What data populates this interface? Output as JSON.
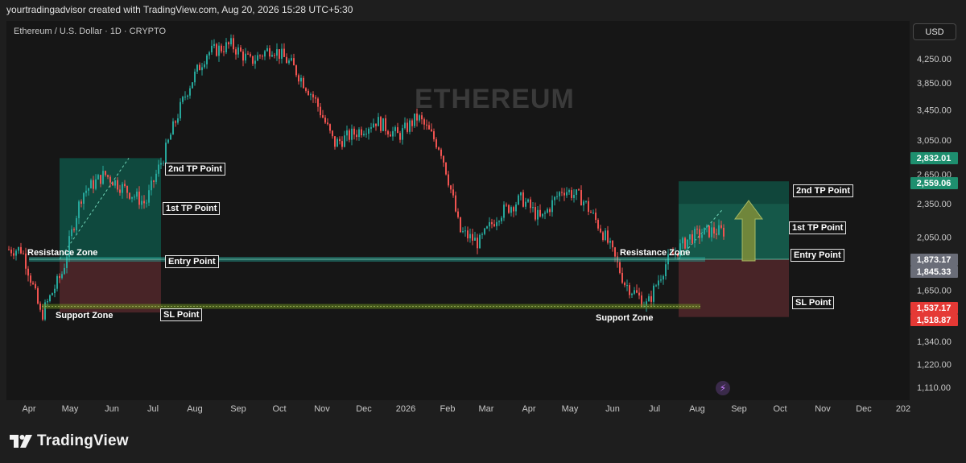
{
  "header": {
    "text": "yourtradingadvisor created with TradingView.com, Aug 20, 2026 15:28 UTC+5:30"
  },
  "symbol": {
    "title": "Ethereum / U.S. Dollar · 1D · CRYPTO"
  },
  "currency": {
    "label": "USD"
  },
  "watermark": {
    "text": "ETHEREUM"
  },
  "brand": {
    "name": "TradingView"
  },
  "colors": {
    "up": "#26a69a",
    "down": "#ef5350",
    "profit_zone": "#0e5b4c",
    "profit_zone_light": "#16755f",
    "loss_zone": "#5a2a2e",
    "entry_line": "#26a69a",
    "sl_line": "#6b8e23",
    "arrow": "#7a8b3a",
    "label_green": "#1e8f6f",
    "label_red": "#e53935",
    "label_gray": "#6a6d78"
  },
  "chart_data": {
    "type": "candlestick",
    "title": "Ethereum / U.S. Dollar · 1D · CRYPTO",
    "price_axis": {
      "ticks": [
        "4,250.00",
        "3,850.00",
        "3,450.00",
        "3,050.00",
        "2,650.00",
        "2,350.00",
        "2,050.00",
        "1,650.00",
        "1,340.00",
        "1,220.00",
        "1,110.00"
      ]
    },
    "time_axis": {
      "ticks": [
        "Apr",
        "May",
        "Jun",
        "Jul",
        "Aug",
        "Sep",
        "Oct",
        "Nov",
        "Dec",
        "2026",
        "Feb",
        "Mar",
        "Apr",
        "May",
        "Jun",
        "Jul",
        "Aug",
        "Sep",
        "Oct",
        "Nov",
        "Dec",
        "202"
      ]
    },
    "price_path": [
      [
        "Apr",
        1950
      ],
      [
        "Apr",
        1480
      ],
      [
        "May",
        1780
      ],
      [
        "May",
        2450
      ],
      [
        "Jun",
        2650
      ],
      [
        "Jun",
        2500
      ],
      [
        "Jul",
        2350
      ],
      [
        "Jul",
        2900
      ],
      [
        "Aug",
        3750
      ],
      [
        "Aug",
        4350
      ],
      [
        "Sep",
        4500
      ],
      [
        "Sep",
        4200
      ],
      [
        "Oct",
        4450
      ],
      [
        "Oct",
        4150
      ],
      [
        "Nov",
        3600
      ],
      [
        "Nov",
        3000
      ],
      [
        "Dec",
        3150
      ],
      [
        "Dec",
        3300
      ],
      [
        "2026",
        3100
      ],
      [
        "2026",
        3350
      ],
      [
        "Feb",
        2950
      ],
      [
        "Feb",
        2100
      ],
      [
        "Mar",
        2000
      ],
      [
        "Mar",
        2250
      ],
      [
        "Apr",
        2400
      ],
      [
        "Apr",
        2200
      ],
      [
        "May",
        2500
      ],
      [
        "May",
        2400
      ],
      [
        "Jun",
        2050
      ],
      [
        "Jun",
        1700
      ],
      [
        "Jul",
        1550
      ],
      [
        "Jul",
        1850
      ],
      [
        "Aug",
        2050
      ],
      [
        "Aug",
        2100
      ]
    ],
    "price_labels": [
      {
        "text": "2,832.01",
        "tone": "green"
      },
      {
        "text": "2,559.06",
        "tone": "green"
      },
      {
        "text": "1,873.17",
        "tone": "gray"
      },
      {
        "text": "1,845.33",
        "tone": "gray"
      },
      {
        "text": "1,537.17",
        "tone": "red"
      },
      {
        "text": "1,518.87",
        "tone": "red"
      }
    ],
    "zones": {
      "resistance_price": 1873,
      "support_price": 1545,
      "setups": [
        {
          "entry": 1873,
          "stop": 1537,
          "tp1": 2350,
          "tp2": 2832,
          "from": "May",
          "to": "Jul"
        },
        {
          "entry": 1873,
          "stop": 1519,
          "tp1": 2350,
          "tp2": 2559,
          "from": "Aug",
          "to": "Sep"
        }
      ]
    },
    "annotations": [
      "Resistance Zone",
      "Support Zone",
      "Entry Point",
      "SL Point",
      "1st TP Point",
      "2nd TP Point",
      "Resistance Zone",
      "Support Zone",
      "Entry Point",
      "SL Point",
      "1st TP Point",
      "2nd TP Point"
    ]
  }
}
